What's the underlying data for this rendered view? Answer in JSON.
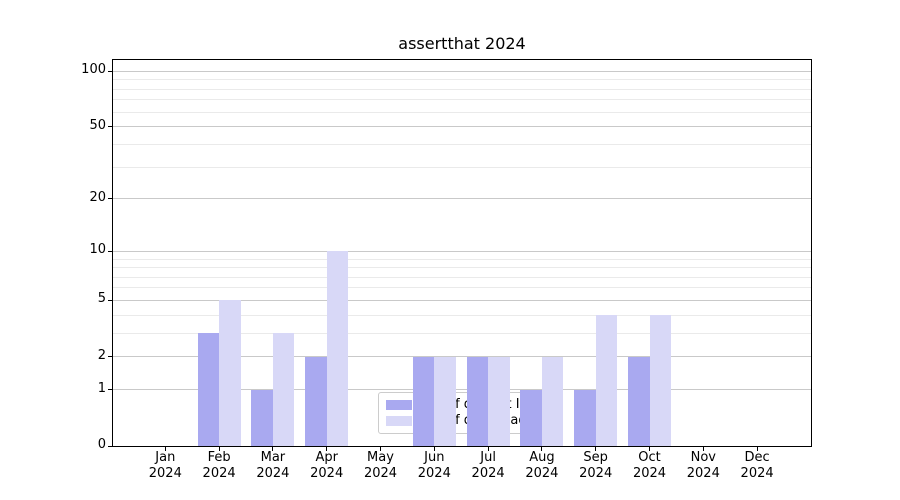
{
  "chart_data": {
    "type": "bar",
    "title": "assertthat 2024",
    "categories": [
      "Jan\n2024",
      "Feb\n2024",
      "Mar\n2024",
      "Apr\n2024",
      "May\n2024",
      "Jun\n2024",
      "Jul\n2024",
      "Aug\n2024",
      "Sep\n2024",
      "Oct\n2024",
      "Nov\n2024",
      "Dec\n2024"
    ],
    "series": [
      {
        "name": "Nb of distinct IPs",
        "color": "#a9a9f0",
        "values": [
          0,
          3,
          1,
          2,
          0,
          2,
          2,
          1,
          1,
          2,
          0,
          0
        ]
      },
      {
        "name": "Nb of downloads",
        "color": "#d8d8f7",
        "values": [
          0,
          5,
          3,
          10,
          0,
          2,
          2,
          2,
          4,
          4,
          0,
          0
        ]
      }
    ],
    "y_axis": {
      "scale": "log10(value+1)",
      "ticks": [
        0,
        1,
        2,
        5,
        10,
        20,
        50,
        100
      ],
      "minor_gridlines": [
        3,
        4,
        6,
        7,
        8,
        9,
        30,
        40,
        60,
        70,
        80,
        90
      ],
      "ylim": [
        0,
        115
      ]
    },
    "x_axis": {
      "tick_years": "2024"
    },
    "legend": {
      "position": "lower-center-inside"
    },
    "grid": "horizontal",
    "colors": {
      "major_gridline": "#c9c9c9",
      "minor_gridline": "#eaeaea",
      "axis": "#000000",
      "background": "#ffffff"
    }
  }
}
